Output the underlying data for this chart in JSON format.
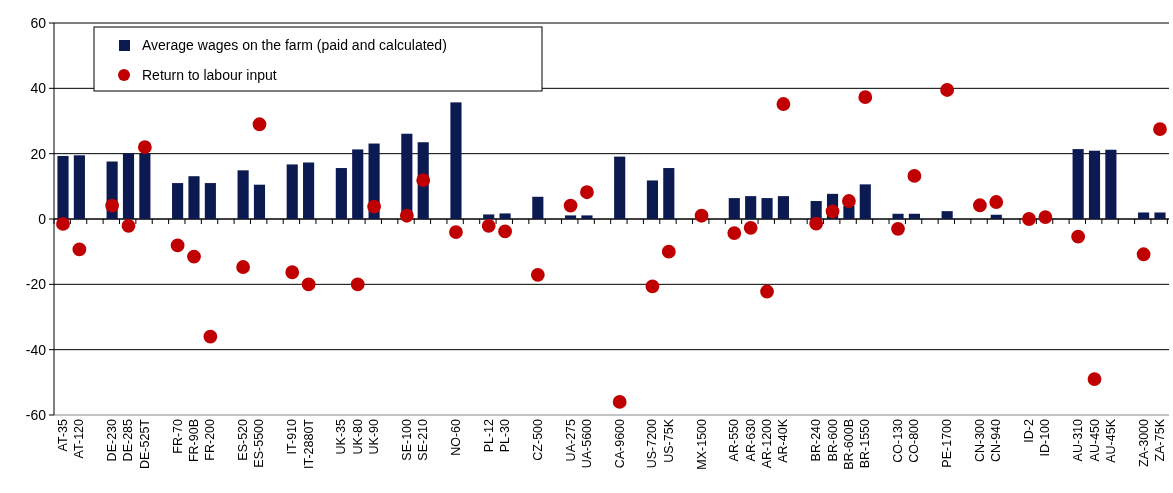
{
  "chart_data": {
    "type": "bar",
    "categories": [
      "AT-35",
      "AT-120",
      null,
      "DE-230",
      "DE-285",
      "DE-525T",
      null,
      "FR-70",
      "FR-90B",
      "FR-200",
      null,
      "ES-520",
      "ES-5500",
      null,
      "IT-910",
      "IT-2880T",
      null,
      "UK-35",
      "UK-80",
      "UK-90",
      null,
      "SE-100",
      "SE-210",
      null,
      "NO-60",
      null,
      "PL-12",
      "PL-30",
      null,
      "CZ-500",
      null,
      "UA-275",
      "UA-5600",
      null,
      "CA-9600",
      null,
      "US-7200",
      "US-75K",
      null,
      "MX-1500",
      null,
      "AR-550",
      "AR-630",
      "AR-1200",
      "AR-40K",
      null,
      "BR-240",
      "BR-600",
      "BR-600B",
      "BR-1550",
      null,
      "CO-130",
      "CO-800",
      null,
      "PE-1700",
      null,
      "CN-300",
      "CN-940",
      null,
      "ID-2",
      "ID-100",
      null,
      "AU-310",
      "AU-450",
      "AU-45K",
      null,
      "ZA-3000",
      "ZA-75K"
    ],
    "series": [
      {
        "name": "Average wages on the farm (paid and calculated)",
        "color": "#0c1a52",
        "values": [
          19.3,
          19.5,
          null,
          17.6,
          20.1,
          20.1,
          null,
          11,
          13.1,
          11,
          null,
          14.9,
          10.5,
          null,
          16.7,
          17.3,
          null,
          15.6,
          21.3,
          23.1,
          null,
          26.1,
          23.5,
          null,
          35.7,
          null,
          1.4,
          1.7,
          null,
          6.8,
          null,
          1.1,
          1.1,
          null,
          19.1,
          null,
          11.8,
          15.6,
          null,
          null,
          null,
          6.4,
          7,
          6.4,
          7,
          null,
          5.5,
          7.7,
          4,
          10.6,
          null,
          1.6,
          1.6,
          null,
          2.4,
          null,
          null,
          1.3,
          null,
          null,
          null,
          null,
          21.4,
          20.9,
          21.2,
          null,
          2,
          2
        ]
      },
      {
        "name": "Return to labour input",
        "type": "scatter",
        "color": "#c00000",
        "marker": "circle",
        "values": [
          -1.5,
          -9.3,
          null,
          4.1,
          -2.1,
          22,
          null,
          -8.1,
          -11.5,
          -36,
          null,
          -14.7,
          29,
          null,
          -16.3,
          -20,
          null,
          null,
          -20,
          3.8,
          null,
          1,
          11.9,
          null,
          -4,
          null,
          -2.1,
          -3.8,
          null,
          -17.1,
          null,
          4.1,
          8.2,
          null,
          -56,
          null,
          -20.6,
          -10,
          null,
          1,
          null,
          -4.3,
          -2.7,
          -22.2,
          35.2,
          null,
          -1.4,
          2.3,
          5.5,
          37.3,
          null,
          -3,
          13.2,
          null,
          39.5,
          null,
          4.2,
          5.2,
          null,
          0,
          0.6,
          null,
          -5.4,
          -49,
          null,
          null,
          -10.8,
          27.5
        ]
      }
    ],
    "ylim": [
      -60,
      60
    ],
    "yticks": [
      -60,
      -40,
      -20,
      0,
      20,
      40,
      60
    ],
    "grid": "y",
    "legend": "top left"
  }
}
